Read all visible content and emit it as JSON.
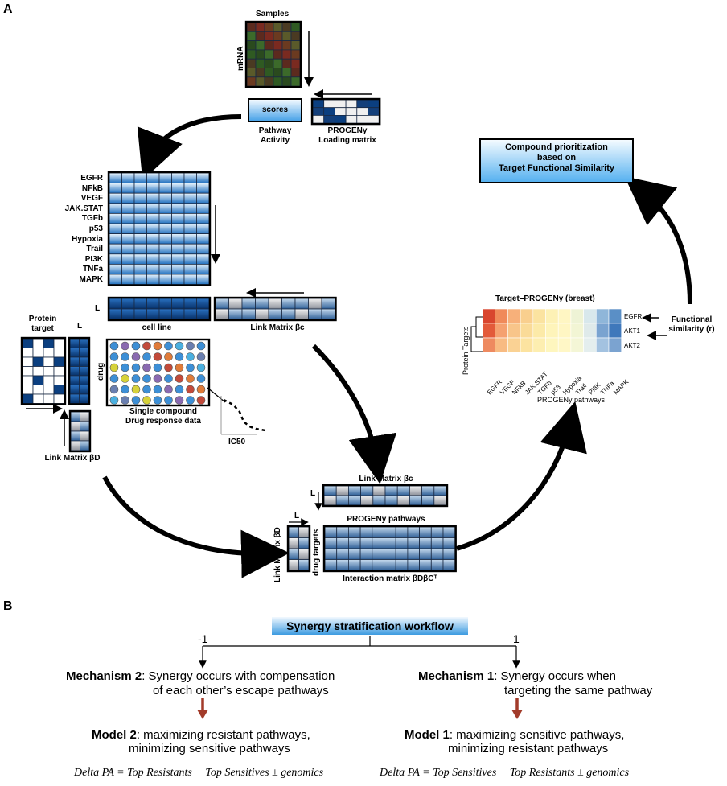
{
  "panel_a": {
    "label": "A",
    "samples": "Samples",
    "mrna": "mRNA",
    "scores": "scores",
    "pathway_activity": "Pathway\nActivity",
    "progeny_loading": "PROGENy\nLoading matrix",
    "pathways": [
      "EGFR",
      "NFkB",
      "VEGF",
      "JAK.STAT",
      "TGFb",
      "p53",
      "Hypoxia",
      "Trail",
      "PI3K",
      "TNFa",
      "MAPK"
    ],
    "l_symbol": "L",
    "cell_line": "cell line",
    "link_matrix_bc": "Link Matrix βc",
    "protein_target": "Protein\ntarget",
    "drug": "drug",
    "single_compound": "Single compound\nDrug response data",
    "ic50": "IC50",
    "link_matrix_bd": "Link Matrix βD",
    "link_matrix_bc_2": "Link Matrix βc",
    "progeny_pathways_bold": "PROGENy pathways",
    "link_matrix_bd_vertical": "Link Matrix βD",
    "drug_targets": "drug targets",
    "interaction_matrix": "Interaction matrix βDβCᵀ",
    "prioritization": "Compound prioritization\nbased on\nTarget Functional Similarity",
    "heatmap_title": "Target–PROGENy (breast)",
    "protein_targets": "Protein Targets",
    "heatmap_rows": [
      "EGFR",
      "AKT1",
      "AKT2"
    ],
    "heatmap_cols": [
      "EGFR",
      "VEGF",
      "NFkB",
      "JAK.STAT",
      "TGFb",
      "p53",
      "Hypoxia",
      "Trail",
      "PI3K",
      "TNFa",
      "MAPK"
    ],
    "progeny_pathways": "PROGENy pathways",
    "functional_similarity": "Functional\nsimilarity (r)"
  },
  "panel_b": {
    "label": "B",
    "workflow": "Synergy stratification workflow",
    "neg": "-1",
    "pos": "1",
    "mech2_bold": "Mechanism 2",
    "mech2_text": ": Synergy occurs with compensation",
    "mech2_line2": "of each other’s escape pathways",
    "mech1_bold": "Mechanism 1",
    "mech1_text": ": Synergy occurs when",
    "mech1_line2": "targeting the same pathway",
    "model2_bold": "Model 2",
    "model2_text": ": maximizing resistant pathways,",
    "model2_line2": "minimizing sensitive pathways",
    "model1_bold": "Model 1",
    "model1_text": ": maximizing sensitive pathways,",
    "model1_line2": "minimizing resistant pathways",
    "formula_left": "Delta PA  =  Top Resistants  −  Top Sensitives  ± genomics",
    "formula_right": "Delta PA  =  Top Sensitives  −  Top Resistants  ± genomics"
  },
  "colors": {
    "blue_dark": "#0b3f80",
    "blue_light": "#dff0fb",
    "title_box": "#3d9be0",
    "arrow_red": "#a23b2a"
  }
}
